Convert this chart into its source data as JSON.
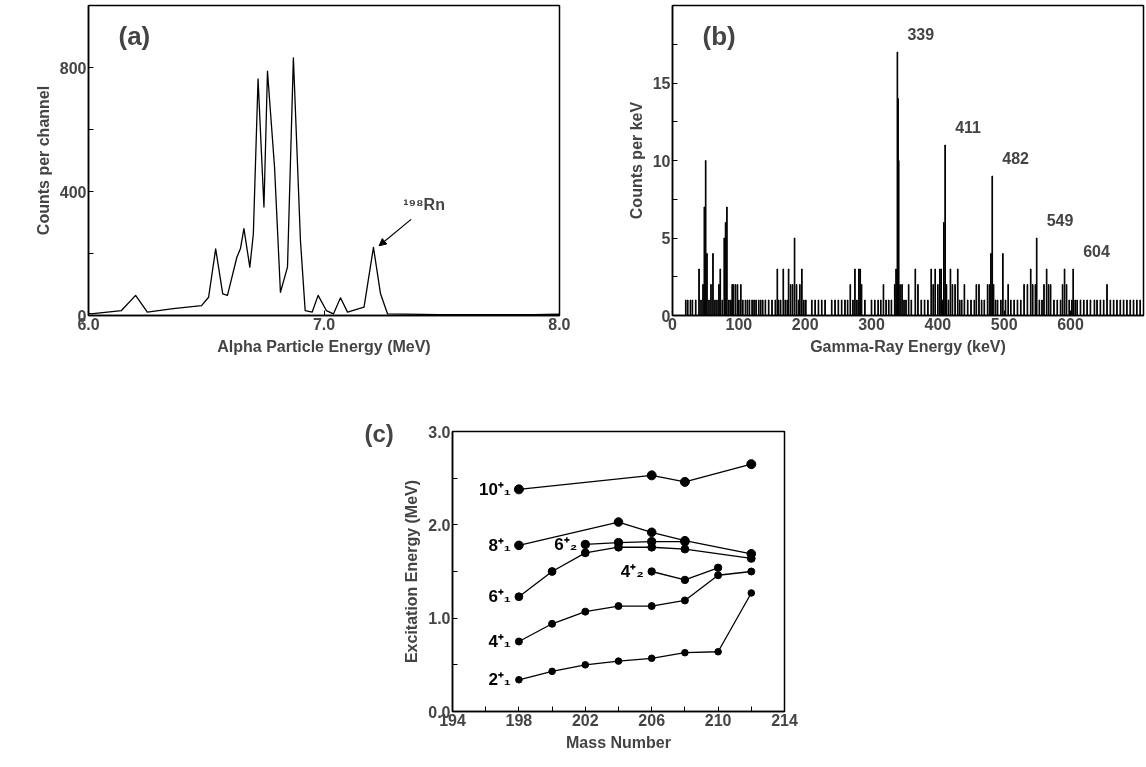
{
  "chart_data": [
    {
      "type": "line",
      "title": "(a)",
      "xlabel": "Alpha Particle Energy (MeV)",
      "ylabel": "Counts per channel",
      "color": "#000000",
      "x": [
        6.0,
        6.01,
        6.14,
        6.2,
        6.25,
        6.36,
        6.48,
        6.51,
        6.54,
        6.57,
        6.59,
        6.63,
        6.645,
        6.66,
        6.685,
        6.7,
        6.72,
        6.745,
        6.76,
        6.79,
        6.815,
        6.845,
        6.87,
        6.9,
        6.92,
        6.95,
        6.975,
        7.01,
        7.04,
        7.07,
        7.1,
        7.17,
        7.21,
        7.24,
        7.27,
        7.49,
        7.89,
        8.0
      ],
      "values": [
        8,
        5,
        16,
        65,
        11,
        22,
        32,
        59,
        215,
        70,
        65,
        188,
        215,
        280,
        156,
        263,
        763,
        350,
        788,
        478,
        75,
        156,
        831,
        242,
        16,
        11,
        65,
        16,
        5,
        57,
        11,
        27,
        220,
        70,
        5,
        3,
        3,
        4
      ],
      "xlim": [
        6.0,
        8.0
      ],
      "xticks": [
        {
          "value": 6,
          "label": "6.0"
        },
        {
          "value": 7,
          "label": "7.0"
        },
        {
          "value": 8,
          "label": "8.0"
        }
      ],
      "ylim": [
        0,
        1000
      ],
      "yticks": [
        0,
        {
          "value": 200,
          "label": null
        },
        400,
        {
          "value": 600,
          "label": null
        },
        800
      ],
      "annotations": [
        {
          "text": "¹⁹⁸Rn",
          "x": 7.21,
          "y": 220
        }
      ]
    },
    {
      "type": "bar",
      "title": "(b)",
      "xlabel": "Gamma-Ray Energy (keV)",
      "ylabel": "Counts per keV",
      "color": "#000000",
      "x": [
        20,
        23,
        27,
        30,
        35,
        40,
        43,
        46,
        48,
        50,
        52,
        55,
        58,
        61,
        64,
        67,
        70,
        72,
        75,
        78,
        80,
        82,
        85,
        88,
        90,
        92,
        95,
        98,
        100,
        103,
        106,
        110,
        113,
        116,
        120,
        123,
        126,
        130,
        133,
        136,
        140,
        145,
        150,
        155,
        158,
        160,
        163,
        167,
        170,
        173,
        175,
        178,
        181,
        184,
        187,
        190,
        192,
        195,
        198,
        201,
        210,
        215,
        220,
        225,
        230,
        240,
        245,
        250,
        255,
        260,
        264,
        268,
        272,
        275,
        278,
        281,
        283,
        285,
        290,
        300,
        305,
        310,
        314,
        318,
        322,
        326,
        330,
        335,
        337,
        339,
        340,
        341,
        343,
        346,
        349,
        352,
        356,
        360,
        366,
        370,
        375,
        380,
        385,
        390,
        393,
        396,
        400,
        403,
        405,
        407,
        409,
        411,
        413,
        416,
        419,
        422,
        426,
        430,
        433,
        436,
        440,
        445,
        450,
        455,
        458,
        462,
        466,
        470,
        475,
        478,
        480,
        482,
        484,
        487,
        490,
        495,
        498,
        502,
        506,
        510,
        515,
        520,
        525,
        530,
        535,
        540,
        543,
        547,
        549,
        553,
        557,
        560,
        564,
        567,
        570,
        575,
        580,
        585,
        588,
        591,
        594,
        598,
        602,
        604,
        607,
        610,
        615,
        620,
        625,
        630,
        636,
        640,
        645,
        650,
        655,
        660,
        665,
        670,
        675,
        680,
        685,
        690,
        695,
        700,
        705
      ],
      "values": [
        1,
        1,
        1,
        1,
        1,
        3,
        1,
        2,
        7,
        10,
        4,
        1,
        2,
        4,
        1,
        1,
        2,
        3,
        1,
        5,
        6,
        7,
        1,
        1,
        2,
        2,
        2,
        2,
        1,
        2,
        1,
        1,
        1,
        1,
        1,
        1,
        1,
        1,
        1,
        1,
        1,
        1,
        1,
        1,
        3,
        1,
        1,
        3,
        1,
        1,
        3,
        2,
        2,
        5,
        2,
        1,
        2,
        3,
        1,
        1,
        1,
        1,
        1,
        1,
        1,
        1,
        1,
        1,
        1,
        1,
        1,
        2,
        1,
        3,
        1,
        3,
        3,
        2,
        1,
        1,
        1,
        1,
        1,
        2,
        1,
        1,
        1,
        2,
        3,
        17,
        14,
        10,
        2,
        2,
        1,
        1,
        2,
        1,
        3,
        2,
        1,
        1,
        1,
        3,
        2,
        3,
        2,
        3,
        3,
        1,
        6,
        11,
        2,
        1,
        3,
        2,
        2,
        3,
        1,
        1,
        2,
        1,
        1,
        1,
        2,
        2,
        1,
        1,
        2,
        2,
        4,
        9,
        2,
        1,
        1,
        1,
        4,
        1,
        2,
        1,
        1,
        1,
        1,
        2,
        2,
        3,
        2,
        2,
        5,
        1,
        1,
        2,
        3,
        2,
        2,
        1,
        1,
        1,
        2,
        3,
        2,
        1,
        1,
        3,
        1,
        1,
        1,
        1,
        1,
        1,
        1,
        1,
        1,
        1,
        2,
        1,
        1,
        1,
        1,
        1,
        1,
        1,
        1,
        1,
        1
      ],
      "xlim": [
        0,
        710
      ],
      "xticks": [
        0,
        100,
        200,
        300,
        400,
        500,
        600
      ],
      "ylim": [
        0,
        20
      ],
      "yticks": [
        0,
        {
          "value": 2.5,
          "label": null
        },
        5,
        {
          "value": 7.5,
          "label": null
        },
        10,
        {
          "value": 12.5,
          "label": null
        },
        15,
        {
          "value": 17.5,
          "label": null
        }
      ],
      "annotations": [
        {
          "text": "339",
          "x": 339,
          "y": 17
        },
        {
          "text": "411",
          "x": 411,
          "y": 11
        },
        {
          "text": "482",
          "x": 482,
          "y": 9
        },
        {
          "text": "549",
          "x": 549,
          "y": 5
        },
        {
          "text": "604",
          "x": 604,
          "y": 3
        }
      ]
    },
    {
      "type": "line",
      "title": "(c)",
      "xlabel": "Mass Number",
      "ylabel": "Excitation Energy (MeV)",
      "marker": "circle",
      "xlim": [
        194,
        214
      ],
      "xticks": [
        194,
        {
          "value": 196,
          "label": null
        },
        198,
        {
          "value": 200,
          "label": null
        },
        202,
        {
          "value": 204,
          "label": null
        },
        206,
        {
          "value": 208,
          "label": null
        },
        210,
        {
          "value": 212,
          "label": null
        },
        214
      ],
      "ylim": [
        0,
        3
      ],
      "yticks": [
        {
          "value": 0,
          "label": "0.0"
        },
        {
          "value": 0.5,
          "label": null
        },
        {
          "value": 1,
          "label": "1.0"
        },
        {
          "value": 1.5,
          "label": null
        },
        {
          "value": 2,
          "label": "2.0"
        },
        {
          "value": 2.5,
          "label": null
        },
        {
          "value": 3,
          "label": "3.0"
        }
      ],
      "series": [
        {
          "name": "10⁺₁",
          "color": "#000000",
          "x": [
            198,
            206,
            208,
            212
          ],
          "values": [
            2.38,
            2.53,
            2.46,
            2.65
          ]
        },
        {
          "name": "8⁺₁",
          "color": "#000000",
          "x": [
            198,
            204,
            206,
            208,
            212
          ],
          "values": [
            1.78,
            2.03,
            1.92,
            1.83,
            1.69
          ]
        },
        {
          "name": "6⁺₂",
          "color": "#000000",
          "x": [
            202,
            204,
            206,
            208
          ],
          "values": [
            1.79,
            1.81,
            1.82,
            1.82
          ]
        },
        {
          "name": "6⁺₁",
          "color": "#000000",
          "x": [
            198,
            200,
            202,
            204,
            206,
            208,
            212
          ],
          "values": [
            1.23,
            1.5,
            1.7,
            1.76,
            1.76,
            1.74,
            1.64
          ]
        },
        {
          "name": "4⁺₂",
          "color": "#000000",
          "x": [
            206,
            208,
            210
          ],
          "values": [
            1.5,
            1.41,
            1.54
          ]
        },
        {
          "name": "4⁺₁",
          "color": "#000000",
          "x": [
            198,
            200,
            202,
            204,
            206,
            208,
            210,
            212
          ],
          "values": [
            0.75,
            0.94,
            1.07,
            1.13,
            1.13,
            1.19,
            1.46,
            1.5
          ]
        },
        {
          "name": "2⁺₁",
          "color": "#000000",
          "x": [
            198,
            200,
            202,
            204,
            206,
            208,
            210,
            212
          ],
          "values": [
            0.34,
            0.43,
            0.5,
            0.54,
            0.57,
            0.63,
            0.64,
            1.27
          ]
        }
      ]
    }
  ]
}
